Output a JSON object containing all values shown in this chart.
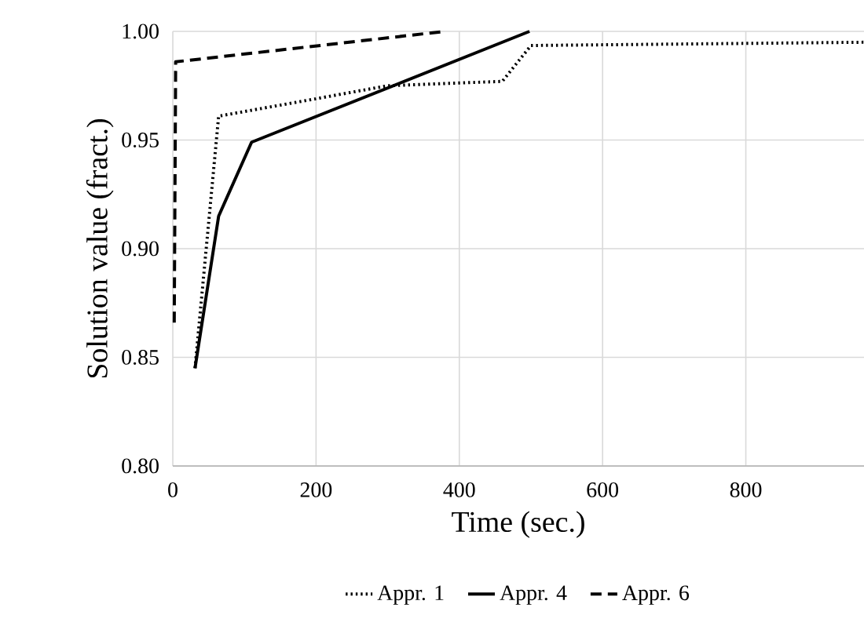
{
  "chart_data": {
    "type": "line",
    "xlabel": "Time (sec.)",
    "ylabel": "Solution value (fract.)",
    "xlim": [
      0,
      965
    ],
    "ylim": [
      0.8,
      1.0
    ],
    "xticks": [
      0,
      200,
      400,
      600,
      800
    ],
    "yticks": [
      {
        "value": 0.8,
        "label": "0.80"
      },
      {
        "value": 0.85,
        "label": "0.85"
      },
      {
        "value": 0.9,
        "label": "0.90"
      },
      {
        "value": 0.95,
        "label": "0.95"
      },
      {
        "value": 1.0,
        "label": "1.00"
      }
    ],
    "grid": true,
    "legend": "bottom",
    "marker": "none",
    "series": [
      {
        "name": "Appr. 1",
        "color": "#000000",
        "line_style": "dotted",
        "x": [
          31,
          64,
          200,
          300,
          460,
          500,
          965
        ],
        "values": [
          0.845,
          0.961,
          0.969,
          0.975,
          0.977,
          0.9935,
          0.995
        ]
      },
      {
        "name": "Appr. 4",
        "color": "#000000",
        "line_style": "solid",
        "x": [
          31,
          64,
          110,
          498
        ],
        "values": [
          0.845,
          0.915,
          0.949,
          1.0
        ]
      },
      {
        "name": "Appr. 6",
        "color": "#000000",
        "line_style": "dashed",
        "x": [
          2,
          4,
          380
        ],
        "values": [
          0.866,
          0.986,
          1.0
        ]
      }
    ]
  }
}
